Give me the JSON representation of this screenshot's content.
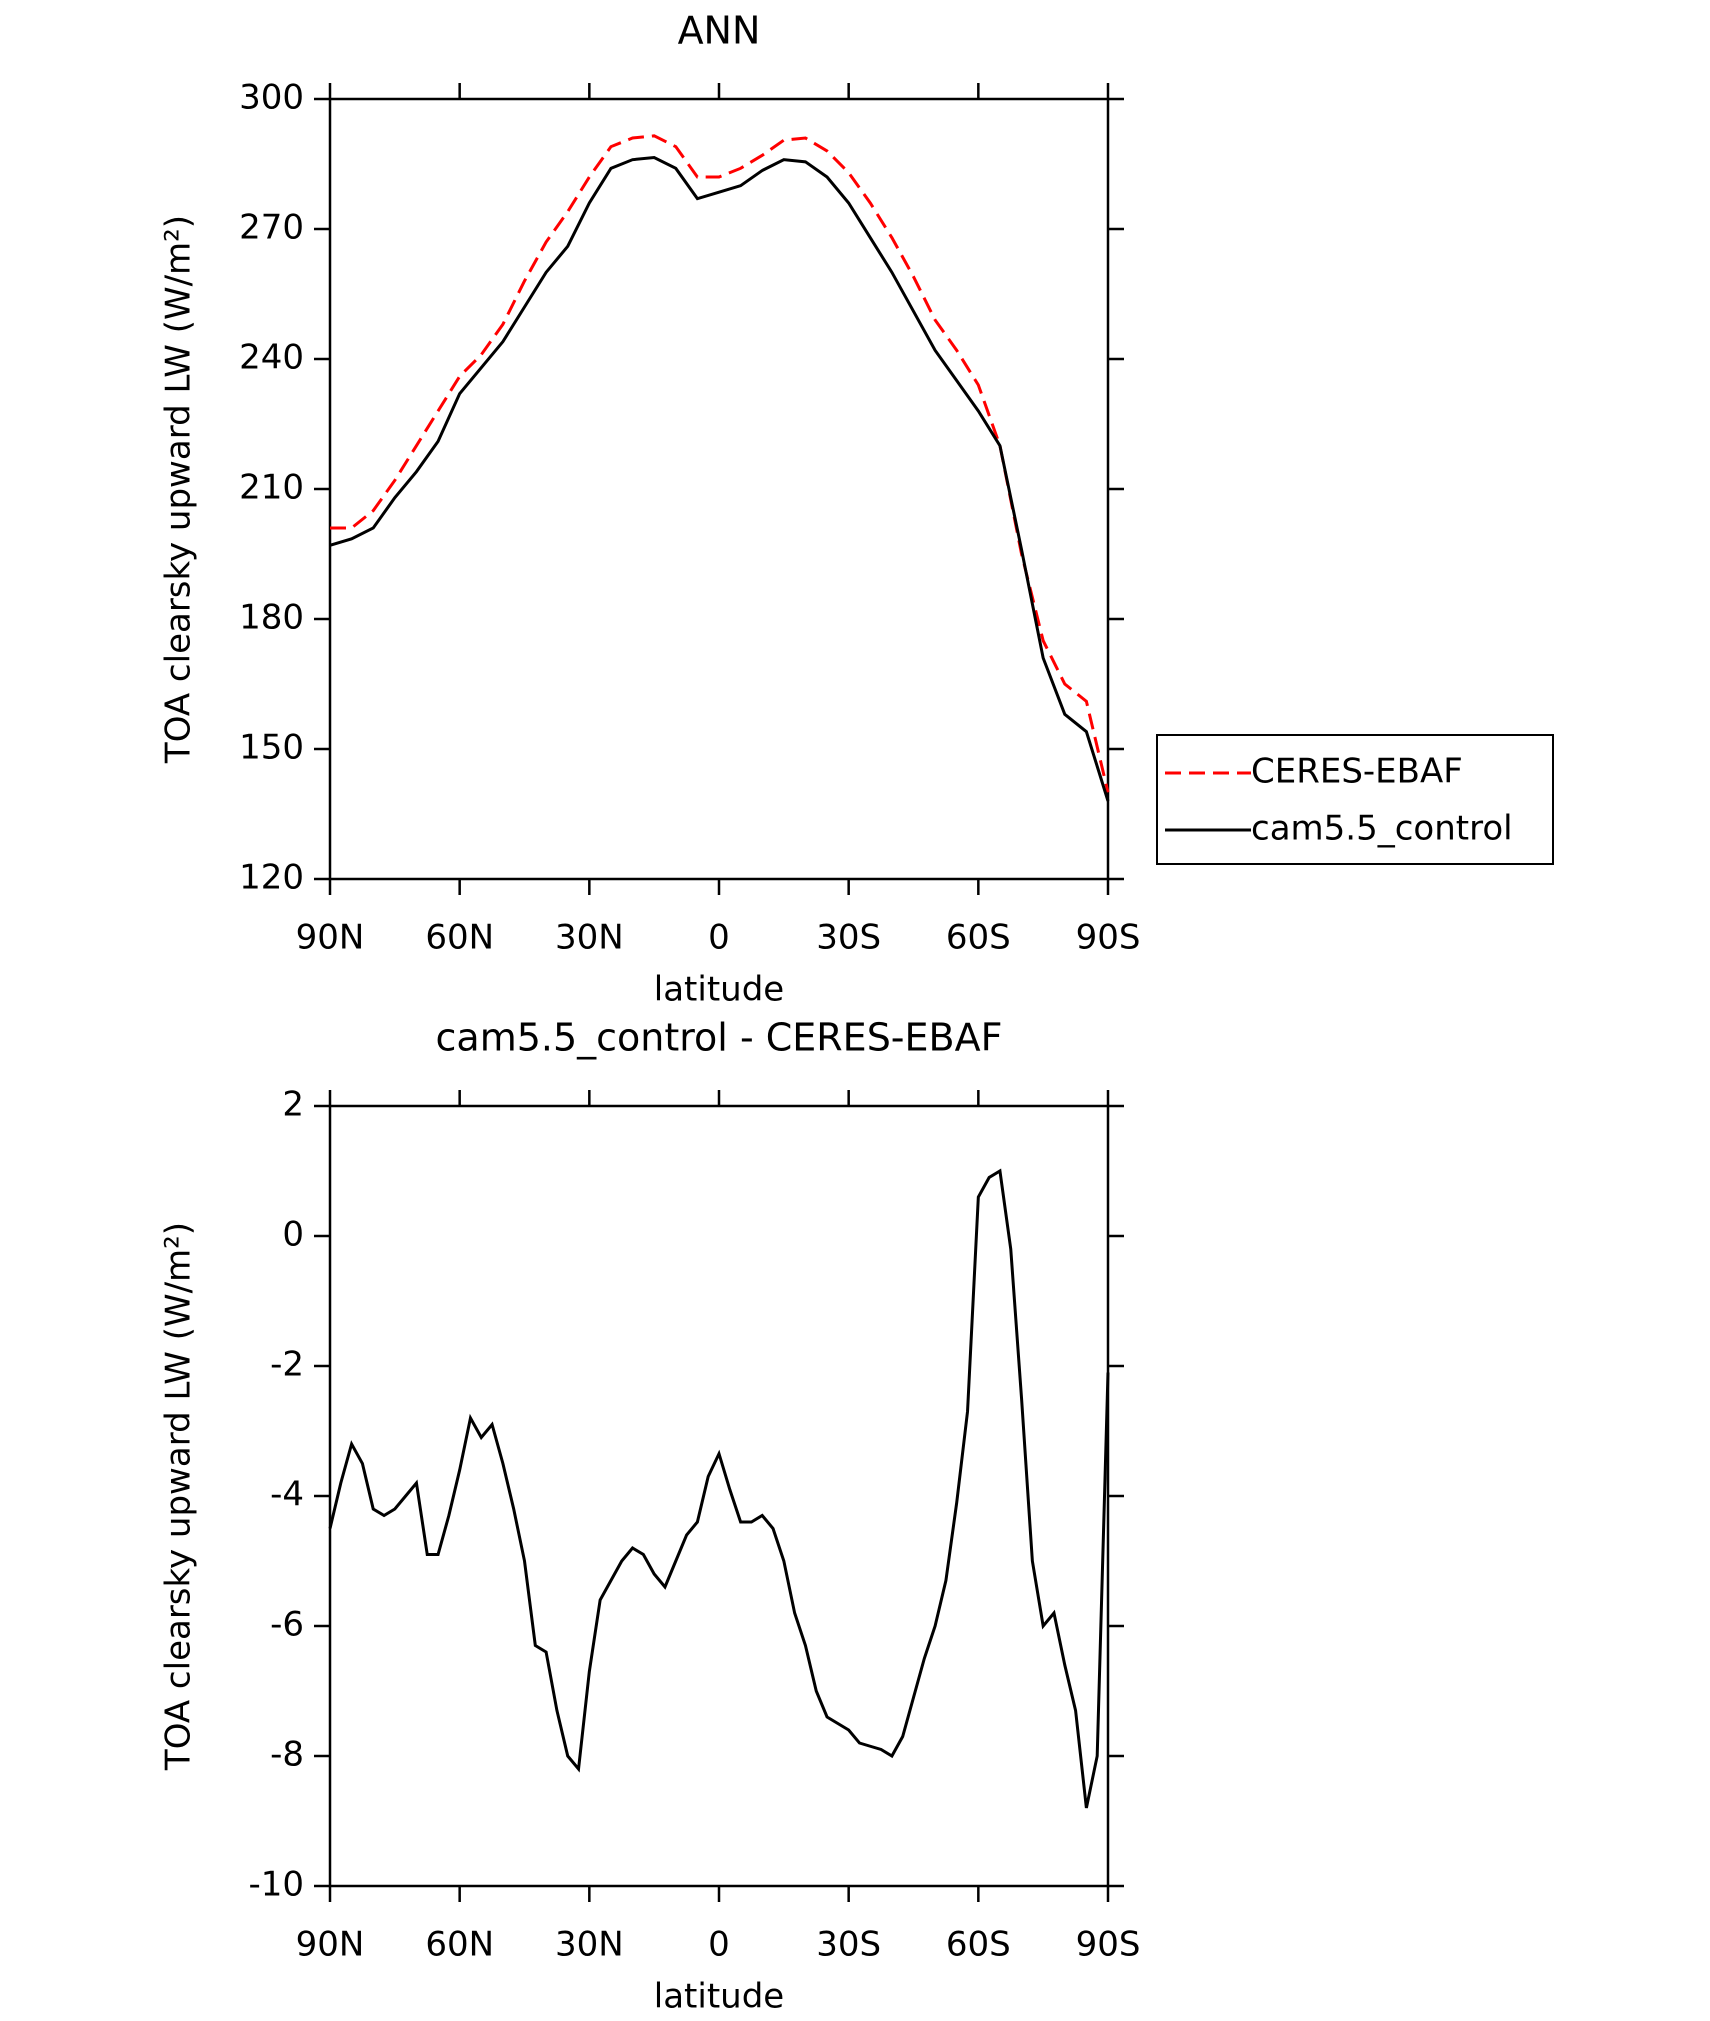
{
  "chart_data": [
    {
      "type": "line",
      "title": "ANN",
      "x_label": "latitude",
      "y_label": "TOA clearsky upward LW (W/m²)",
      "x": [
        90,
        85,
        80,
        75,
        70,
        65,
        60,
        55,
        50,
        45,
        40,
        35,
        30,
        25,
        20,
        15,
        10,
        5,
        0,
        -5,
        -10,
        -15,
        -20,
        -25,
        -30,
        -35,
        -40,
        -45,
        -50,
        -55,
        -60,
        -65,
        -70,
        -75,
        -80,
        -85,
        -90
      ],
      "series": [
        {
          "name": "CERES-EBAF",
          "color": "#ff0000",
          "dash": "dashed",
          "values": [
            201,
            201,
            205,
            212,
            220,
            228,
            236,
            241,
            248,
            258,
            267,
            274,
            282,
            289,
            291,
            291.5,
            289,
            282,
            282,
            284,
            287,
            290.5,
            291,
            288,
            283,
            276,
            268,
            259,
            249,
            242,
            234,
            220,
            195,
            175,
            165,
            161,
            140
          ]
        },
        {
          "name": "cam5.5_control",
          "color": "#000000",
          "dash": "solid",
          "values": [
            197,
            198.5,
            201,
            208,
            214,
            221,
            232,
            238,
            244,
            252,
            260,
            266,
            276,
            284,
            286,
            286.5,
            284,
            277,
            278.5,
            280,
            283.5,
            286,
            285.5,
            282,
            276,
            268,
            260,
            251,
            242,
            235,
            228,
            220,
            196,
            171,
            158,
            154,
            138
          ]
        }
      ],
      "xlim": [
        90,
        -90
      ],
      "xticks": [
        {
          "value": 90,
          "label": "90N"
        },
        {
          "value": 60,
          "label": "60N"
        },
        {
          "value": 30,
          "label": "30N"
        },
        0,
        {
          "value": -30,
          "label": "30S"
        },
        {
          "value": -60,
          "label": "60S"
        },
        {
          "value": -90,
          "label": "90S"
        }
      ],
      "ylim": [
        120,
        300
      ],
      "yticks": [
        120,
        150,
        180,
        210,
        240,
        270,
        300
      ],
      "legend": "outside-right"
    },
    {
      "type": "line",
      "title": "cam5.5_control - CERES-EBAF",
      "x_label": "latitude",
      "y_label": "TOA clearsky upward LW (W/m²)",
      "x": [
        90,
        87.5,
        85,
        82.5,
        80,
        77.5,
        75,
        72.5,
        70,
        67.5,
        65,
        62.5,
        60,
        57.5,
        55,
        52.5,
        50,
        47.5,
        45,
        42.5,
        40,
        37.5,
        35,
        32.5,
        30,
        27.5,
        25,
        22.5,
        20,
        17.5,
        15,
        12.5,
        10,
        7.5,
        5,
        2.5,
        0,
        -2.5,
        -5,
        -7.5,
        -10,
        -12.5,
        -15,
        -17.5,
        -20,
        -22.5,
        -25,
        -27.5,
        -30,
        -32.5,
        -35,
        -37.5,
        -40,
        -42.5,
        -45,
        -47.5,
        -50,
        -52.5,
        -55,
        -57.5,
        -60,
        -62.5,
        -65,
        -67.5,
        -70,
        -72.5,
        -75,
        -77.5,
        -80,
        -82.5,
        -85,
        -87.5,
        -90
      ],
      "series": [
        {
          "color": "#000000",
          "dash": "solid",
          "values": [
            -4.5,
            -3.8,
            -3.2,
            -3.5,
            -4.2,
            -4.3,
            -4.2,
            -4.0,
            -3.8,
            -4.9,
            -4.9,
            -4.3,
            -3.6,
            -2.8,
            -3.1,
            -2.9,
            -3.5,
            -4.2,
            -5.0,
            -6.3,
            -6.4,
            -7.3,
            -8.0,
            -8.2,
            -6.7,
            -5.6,
            -5.3,
            -5.0,
            -4.8,
            -4.9,
            -5.2,
            -5.4,
            -5.0,
            -4.6,
            -4.4,
            -3.7,
            -3.35,
            -3.9,
            -4.4,
            -4.4,
            -4.3,
            -4.5,
            -5.0,
            -5.8,
            -6.3,
            -7.0,
            -7.4,
            -7.5,
            -7.6,
            -7.8,
            -7.85,
            -7.9,
            -8.0,
            -7.7,
            -7.1,
            -6.5,
            -6.0,
            -5.3,
            -4.1,
            -2.7,
            0.6,
            0.9,
            1.0,
            -0.2,
            -2.5,
            -5.0,
            -6.0,
            -5.8,
            -6.6,
            -7.3,
            -8.8,
            -8.0,
            -2.1
          ]
        }
      ],
      "xlim": [
        90,
        -90
      ],
      "xticks": [
        {
          "value": 90,
          "label": "90N"
        },
        {
          "value": 60,
          "label": "60N"
        },
        {
          "value": 30,
          "label": "30N"
        },
        0,
        {
          "value": -30,
          "label": "30S"
        },
        {
          "value": -60,
          "label": "60S"
        },
        {
          "value": -90,
          "label": "90S"
        }
      ],
      "ylim": [
        -10,
        2
      ],
      "yticks": [
        -10,
        -8,
        -6,
        -4,
        -2,
        0,
        2
      ]
    }
  ]
}
